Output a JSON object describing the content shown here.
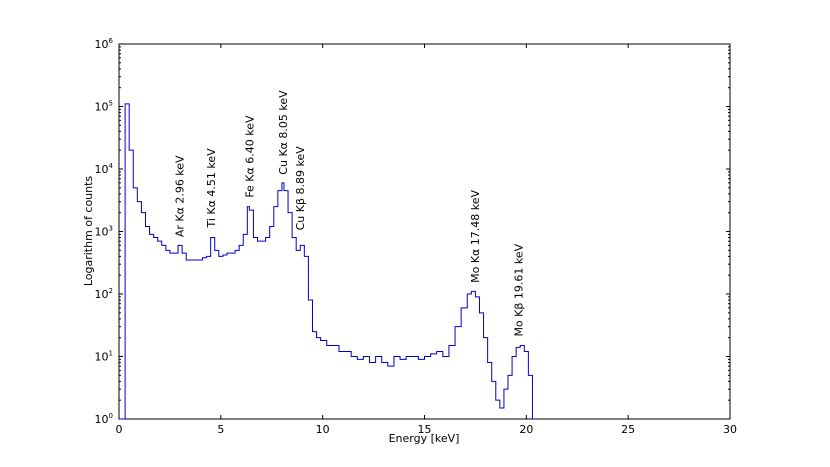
{
  "chart_data": {
    "type": "line",
    "title": "",
    "xlabel": "Energy [keV]",
    "ylabel": "Logarithm of counts",
    "xlim": [
      0,
      30
    ],
    "ylim": [
      1,
      1000000
    ],
    "yscale": "log",
    "grid": false,
    "line_color": "#0000cc",
    "x_ticks": [
      {
        "value": 0,
        "label": "0"
      },
      {
        "value": 5,
        "label": "5"
      },
      {
        "value": 10,
        "label": "10"
      },
      {
        "value": 15,
        "label": "15"
      },
      {
        "value": 20,
        "label": "20"
      },
      {
        "value": 25,
        "label": "25"
      },
      {
        "value": 30,
        "label": "30"
      }
    ],
    "y_ticks": [
      {
        "value": 1,
        "base": "10",
        "exp": "0"
      },
      {
        "value": 10,
        "base": "10",
        "exp": "1"
      },
      {
        "value": 100,
        "base": "10",
        "exp": "2"
      },
      {
        "value": 1000,
        "base": "10",
        "exp": "3"
      },
      {
        "value": 10000,
        "base": "10",
        "exp": "4"
      },
      {
        "value": 100000,
        "base": "10",
        "exp": "5"
      },
      {
        "value": 1000000,
        "base": "10",
        "exp": "6"
      }
    ],
    "annotations": [
      {
        "text": "Ar Kα  2.96 keV",
        "x": 2.96,
        "y": 700
      },
      {
        "text": "Ti Kα 4.51 keV",
        "x": 4.51,
        "y": 1000
      },
      {
        "text": "Fe Kα 6.40 keV",
        "x": 6.4,
        "y": 3000
      },
      {
        "text": "Cu Kα 8.05 keV",
        "x": 8.05,
        "y": 7000
      },
      {
        "text": "Cu Kβ 8.89 keV",
        "x": 8.89,
        "y": 900
      },
      {
        "text": "Mo Kα  17.48 keV",
        "x": 17.48,
        "y": 130
      },
      {
        "text": "Mo Kβ 19.61 keV",
        "x": 19.61,
        "y": 18
      }
    ],
    "series": [
      {
        "x": [
          0,
          0.3,
          0.5,
          0.7,
          0.9,
          1.1,
          1.3,
          1.5,
          1.7,
          1.9,
          2.1,
          2.3,
          2.5,
          2.7,
          2.9,
          3.1,
          3.3,
          3.5,
          3.7,
          3.9,
          4.1,
          4.3,
          4.5,
          4.7,
          4.9,
          5.1,
          5.3,
          5.5,
          5.7,
          5.9,
          6.1,
          6.3,
          6.4,
          6.6,
          6.8,
          7.0,
          7.2,
          7.4,
          7.6,
          7.8,
          8.0,
          8.1,
          8.3,
          8.5,
          8.7,
          8.9,
          9.1,
          9.3,
          9.5,
          9.7,
          9.9,
          10.2,
          10.5,
          10.8,
          11.1,
          11.4,
          11.7,
          12.0,
          12.3,
          12.6,
          12.9,
          13.2,
          13.5,
          13.8,
          14.1,
          14.4,
          14.7,
          15.0,
          15.3,
          15.6,
          15.9,
          16.2,
          16.5,
          16.8,
          17.1,
          17.3,
          17.5,
          17.7,
          17.9,
          18.1,
          18.3,
          18.5,
          18.7,
          18.9,
          19.1,
          19.3,
          19.5,
          19.7,
          19.9,
          20.1,
          20.3
        ],
        "y": [
          0,
          110000,
          20000,
          5000,
          3000,
          2000,
          1200,
          900,
          800,
          700,
          600,
          500,
          450,
          450,
          600,
          450,
          350,
          350,
          350,
          350,
          380,
          400,
          800,
          500,
          400,
          420,
          450,
          450,
          500,
          600,
          900,
          2500,
          2200,
          800,
          700,
          700,
          800,
          1200,
          2500,
          4500,
          6000,
          4500,
          2000,
          800,
          500,
          600,
          400,
          80,
          25,
          20,
          18,
          15,
          15,
          12,
          12,
          10,
          9,
          10,
          8,
          10,
          8,
          7,
          10,
          9,
          10,
          10,
          9,
          10,
          11,
          12,
          10,
          15,
          30,
          60,
          100,
          110,
          90,
          50,
          20,
          8,
          4,
          2,
          1.5,
          3,
          5,
          10,
          14,
          15,
          12,
          5,
          0
        ]
      }
    ]
  }
}
